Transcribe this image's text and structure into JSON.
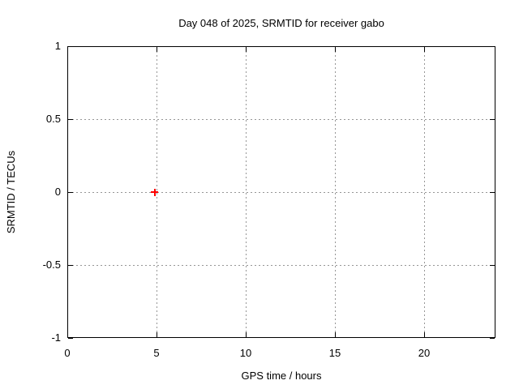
{
  "chart_data": {
    "type": "scatter",
    "title": "Day 048 of 2025, SRMTID for receiver gabo",
    "xlabel": "GPS time / hours",
    "ylabel": "SRMTID / TECUs",
    "xlim": [
      0,
      24
    ],
    "ylim": [
      -1,
      1
    ],
    "grid": true,
    "legend": "none",
    "xticks": [
      {
        "v": 0,
        "label": "0"
      },
      {
        "v": 5,
        "label": "5"
      },
      {
        "v": 10,
        "label": "10"
      },
      {
        "v": 15,
        "label": "15"
      },
      {
        "v": 20,
        "label": "20"
      }
    ],
    "yticks": [
      {
        "v": -1,
        "label": "-1"
      },
      {
        "v": -0.5,
        "label": "-0.5"
      },
      {
        "v": 0,
        "label": "0"
      },
      {
        "v": 0.5,
        "label": "0.5"
      },
      {
        "v": 1,
        "label": "1"
      }
    ],
    "series": [
      {
        "name": "SRMTID",
        "marker": "plus",
        "color": "#ff0000",
        "points": [
          {
            "x": 4.9,
            "y": 0
          }
        ]
      }
    ],
    "colors": {
      "background": "#ffffff",
      "border": "#000000",
      "grid": "#969696",
      "text": "#000000"
    }
  }
}
